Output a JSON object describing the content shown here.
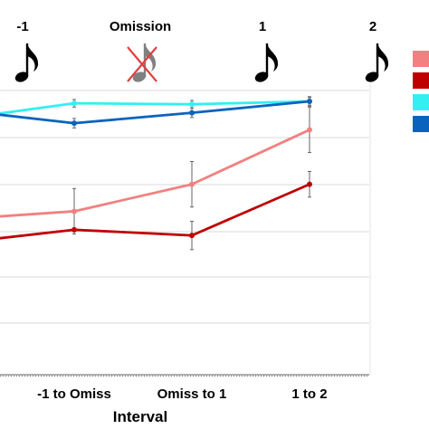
{
  "chart_data": {
    "type": "line",
    "xlabel": "Interval",
    "categories": [
      "",
      "-1 to Omiss",
      "Omiss to 1",
      "1 to 2"
    ],
    "ylim": [
      0,
      1
    ],
    "grid": true,
    "legend_placement": "right",
    "event_markers": [
      {
        "label": "-1",
        "omitted": false,
        "icon": "eighth-note-icon"
      },
      {
        "label": "Omission",
        "omitted": true,
        "icon": "crossed-eighth-note-icon"
      },
      {
        "label": "1",
        "omitted": false,
        "icon": "eighth-note-icon"
      },
      {
        "label": "2",
        "omitted": false,
        "icon": "eighth-note-icon"
      }
    ],
    "series": [
      {
        "color": "#f28080",
        "values": [
          0.333,
          0.345,
          0.402,
          0.517
        ],
        "errors": [
          0.0,
          0.048,
          0.048,
          0.048
        ]
      },
      {
        "color": "#c00000",
        "values": [
          0.286,
          0.306,
          0.294,
          0.402
        ],
        "errors": [
          0.0,
          0.0,
          0.03,
          0.027
        ]
      },
      {
        "color": "#33f0f0",
        "values": [
          0.549,
          0.573,
          0.571,
          0.577
        ],
        "errors": [
          0.0,
          0.008,
          0.008,
          0.008
        ]
      },
      {
        "color": "#0a64be",
        "values": [
          0.551,
          0.531,
          0.553,
          0.577
        ],
        "errors": [
          0.0,
          0.01,
          0.01,
          0.01
        ]
      }
    ]
  }
}
